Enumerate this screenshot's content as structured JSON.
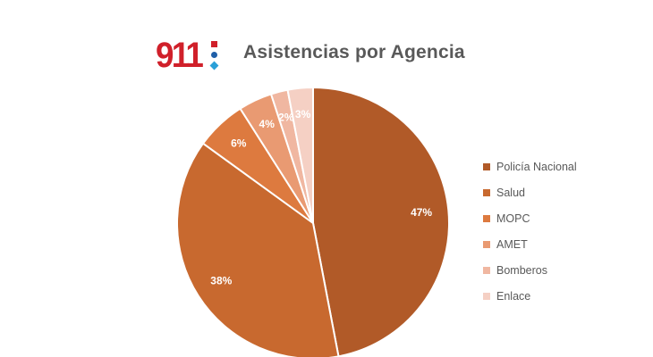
{
  "logo": {
    "text": "911",
    "colors": [
      "#d0202a",
      "#1f5fa8",
      "#2aa0d8"
    ]
  },
  "chart_data": {
    "type": "pie",
    "title": "Asistencias por Agencia",
    "start_angle_deg": 0,
    "direction": "clockwise",
    "legend_position": "right",
    "slices": [
      {
        "label": "Policía Nacional",
        "value": 47,
        "display": "47%",
        "color": "#b15a28"
      },
      {
        "label": "Salud",
        "value": 38,
        "display": "38%",
        "color": "#c8692f"
      },
      {
        "label": "MOPC",
        "value": 6,
        "display": "6%",
        "color": "#dd7a3f"
      },
      {
        "label": "AMET",
        "value": 4,
        "display": "4%",
        "color": "#e99a72"
      },
      {
        "label": "Bomberos",
        "value": 2,
        "display": "2%",
        "color": "#f0b7a1"
      },
      {
        "label": "Enlace",
        "value": 3,
        "display": "3%",
        "color": "#f5d0c4"
      }
    ]
  }
}
